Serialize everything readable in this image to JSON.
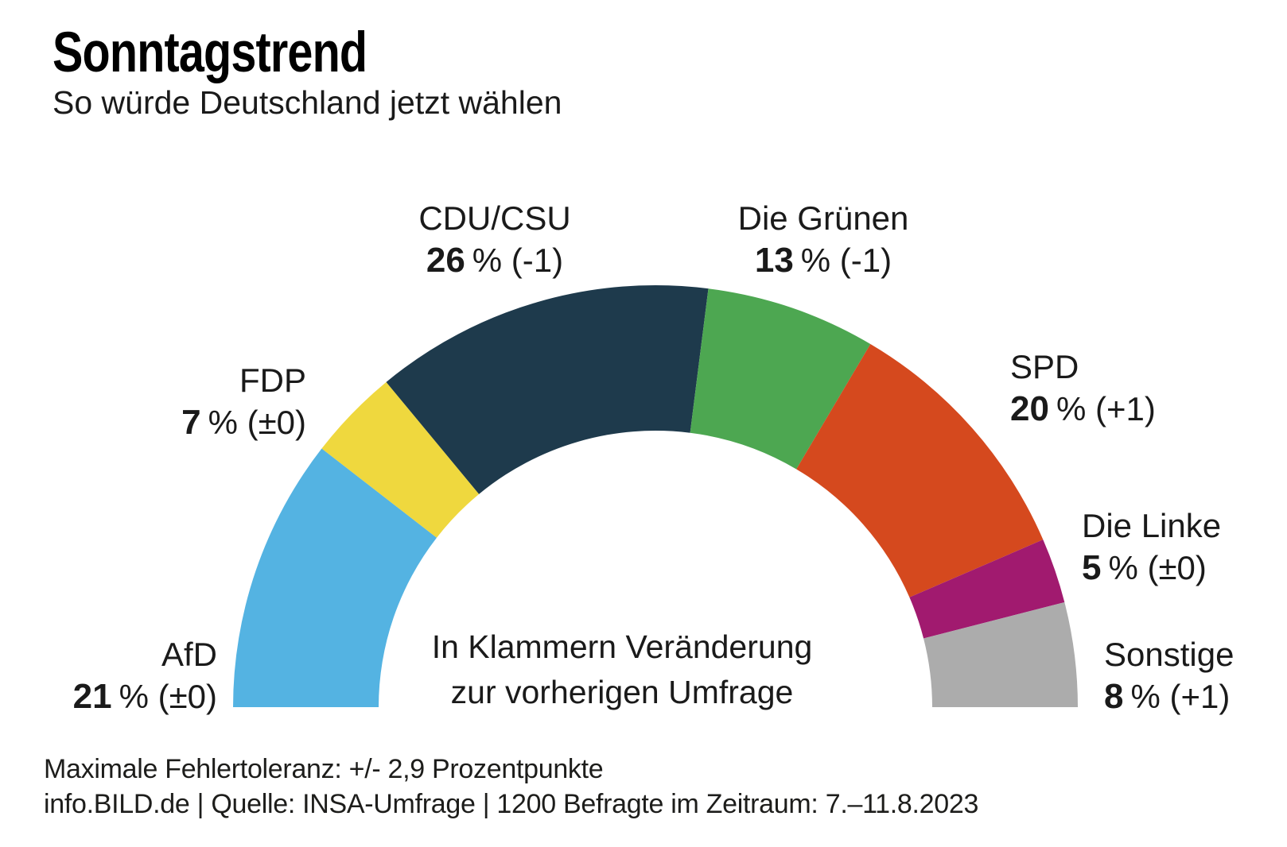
{
  "header": {
    "title": "Sonntagstrend",
    "subtitle": "So würde Deutschland jetzt wählen"
  },
  "chart_data": {
    "type": "pie",
    "variant": "half_donut",
    "unit": "%",
    "total": 100,
    "start_angle_deg": 180,
    "end_angle_deg": 0,
    "title": "Sonntagstrend",
    "subtitle": "So würde Deutschland jetzt wählen",
    "center_note_lines": [
      "In Klammern Veränderung",
      "zur vorherigen Umfrage"
    ],
    "series": [
      {
        "party": "AfD",
        "value": 21,
        "change": "±0",
        "suffix": "% (±0)",
        "color": "#54B3E2"
      },
      {
        "party": "FDP",
        "value": 7,
        "change": "±0",
        "suffix": "% (±0)",
        "color": "#EFD83E"
      },
      {
        "party": "CDU/CSU",
        "value": 26,
        "change": "-1",
        "suffix": "% (-1)",
        "color": "#1E3A4C"
      },
      {
        "party": "Die Grünen",
        "value": 13,
        "change": "-1",
        "suffix": "% (-1)",
        "color": "#4DA751"
      },
      {
        "party": "SPD",
        "value": 20,
        "change": "+1",
        "suffix": "% (+1)",
        "color": "#D5491E"
      },
      {
        "party": "Die Linke",
        "value": 5,
        "change": "±0",
        "suffix": "% (±0)",
        "color": "#A11A6F"
      },
      {
        "party": "Sonstige",
        "value": 8,
        "change": "+1",
        "suffix": "% (+1)",
        "color": "#ACACAC"
      }
    ]
  },
  "footer": {
    "line1": "Maximale Fehlertoleranz: +/- 2,9 Prozentpunkte",
    "line2": "info.BILD.de | Quelle: INSA-Umfrage | 1200 Befragte im Zeitraum: 7.–11.8.2023"
  }
}
